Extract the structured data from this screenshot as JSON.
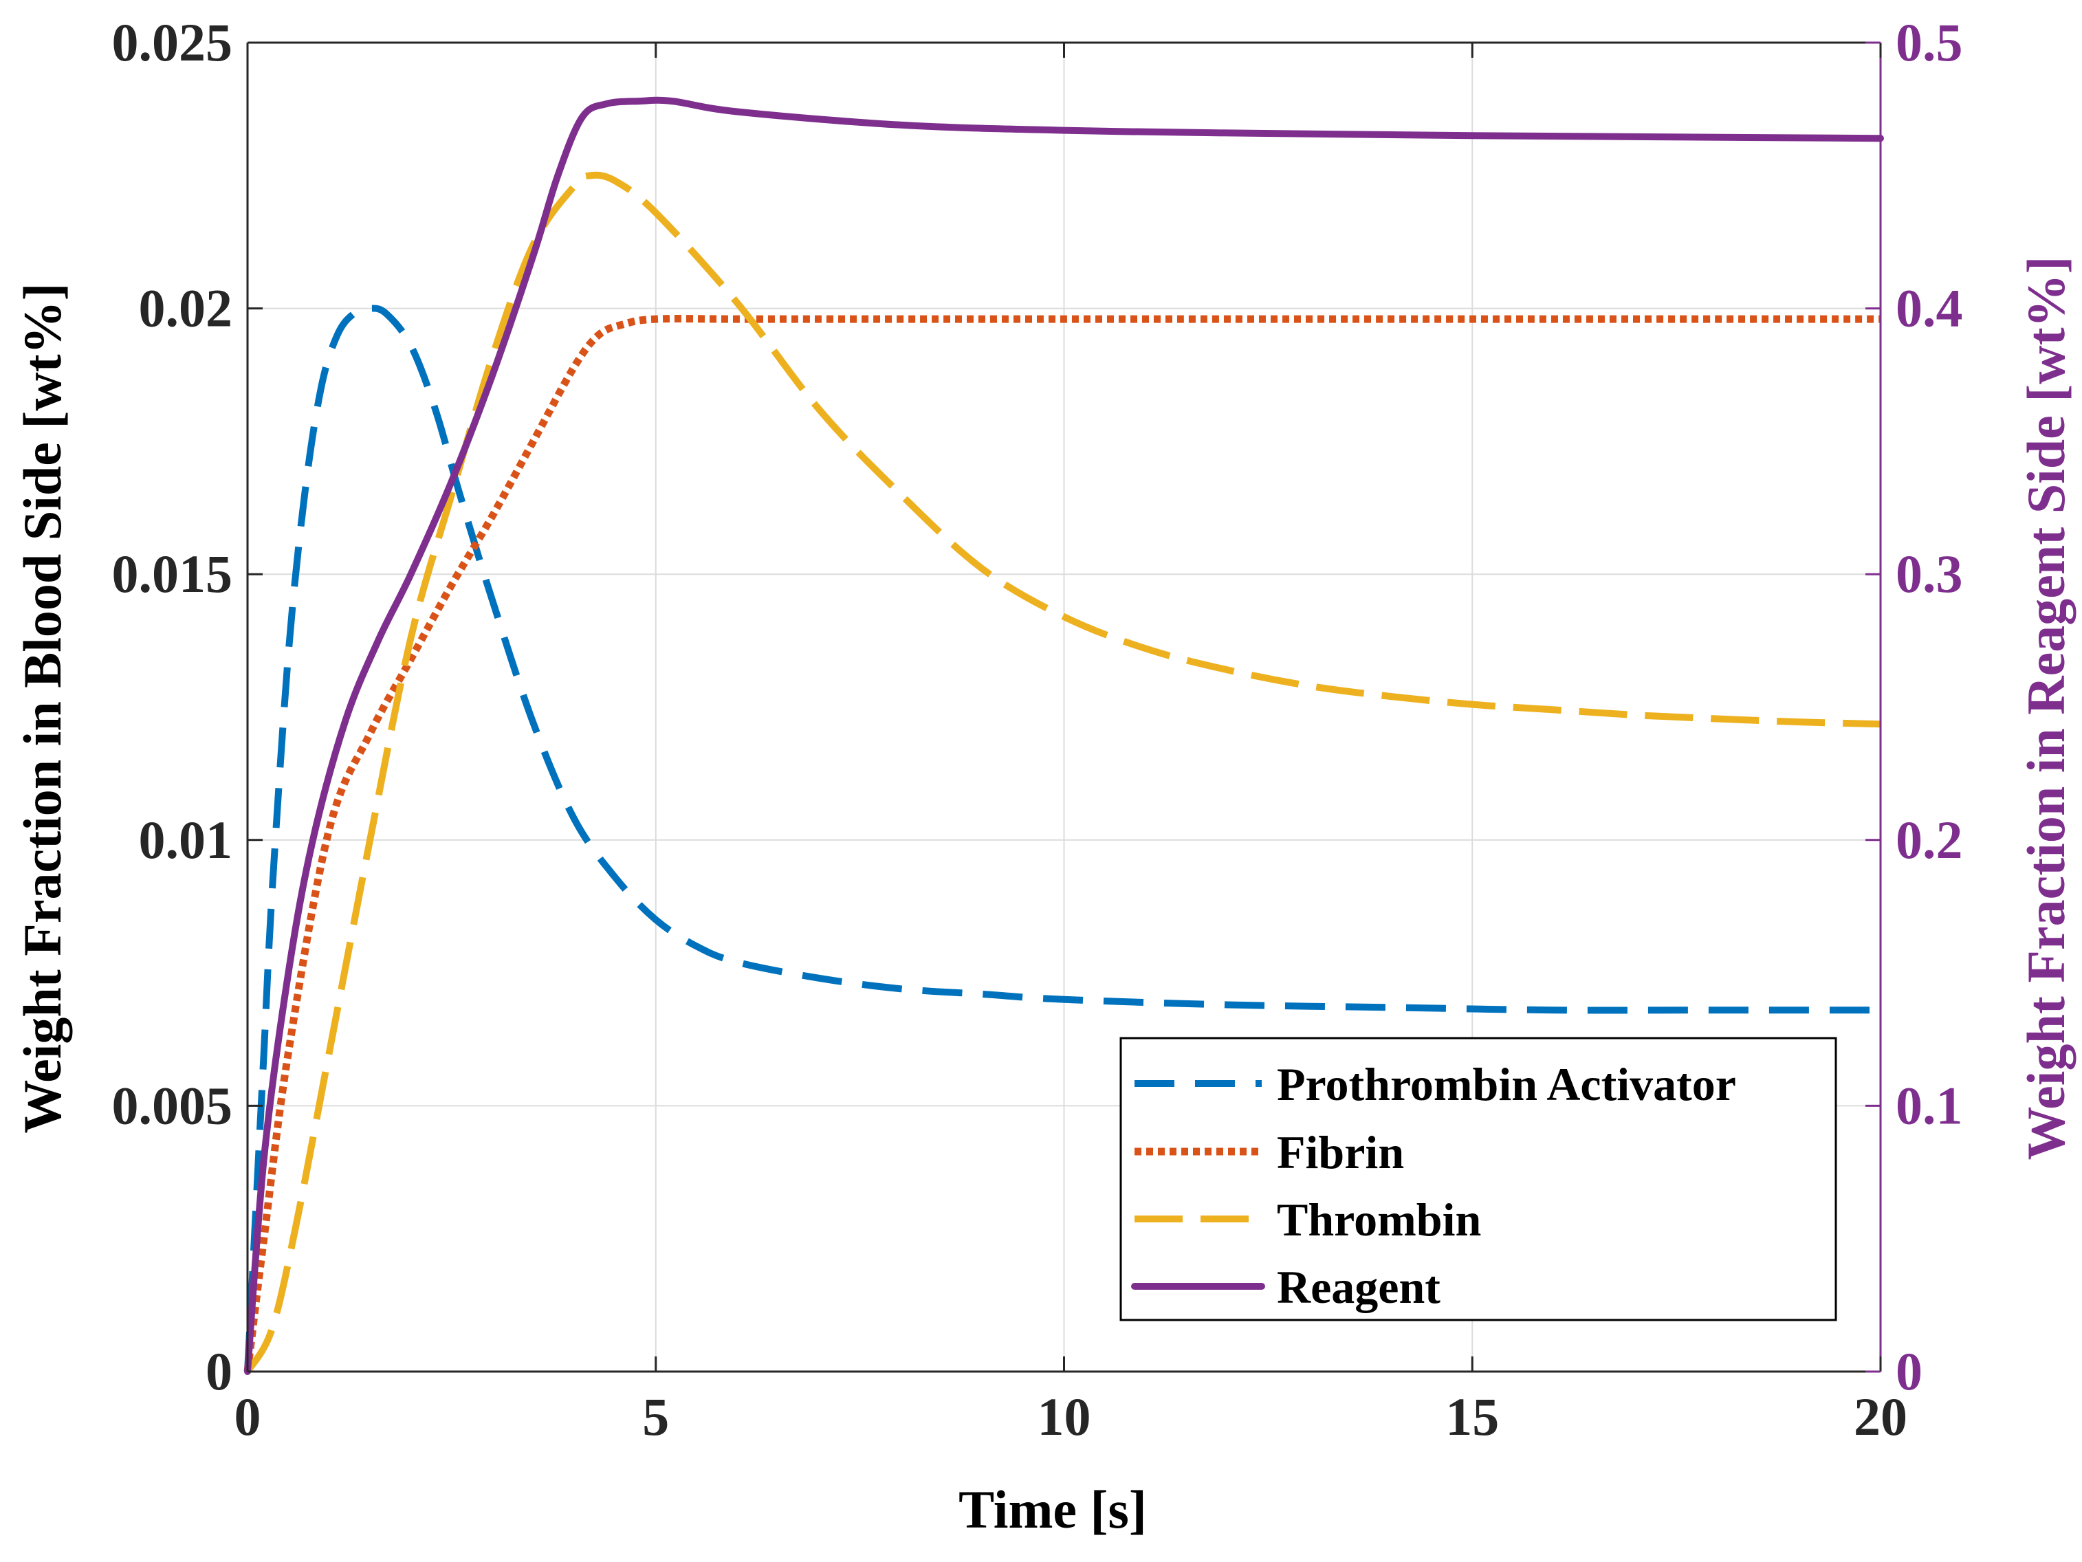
{
  "chart_data": {
    "type": "line",
    "title": "",
    "xlabel": "Time [s]",
    "ylabel_left": "Weight Fraction in Blood Side [wt%]",
    "ylabel_right": "Weight Fraction in Reagent Side [wt%]",
    "xlim": [
      0,
      20
    ],
    "ylim_left": [
      0,
      0.025
    ],
    "ylim_right": [
      0,
      0.5
    ],
    "grid": true,
    "legend_position": "bottom-right",
    "x_ticks": [
      "0",
      "5",
      "10",
      "15",
      "20"
    ],
    "y_left_ticks": [
      "0",
      "0.005",
      "0.01",
      "0.015",
      "0.02",
      "0.025"
    ],
    "y_right_ticks": [
      "0",
      "0.1",
      "0.2",
      "0.3",
      "0.4",
      "0.5"
    ],
    "colors": {
      "prothrombin": "#0072BD",
      "fibrin": "#D95319",
      "thrombin": "#EDB120",
      "reagent": "#7E2F8E",
      "right_axis": "#7E2F8E",
      "grid": "#dcdcdc"
    },
    "series": [
      {
        "name": "Prothrombin Activator",
        "axis": "left",
        "style": "dashed",
        "x": [
          0,
          0.1,
          0.2,
          0.3,
          0.5,
          0.7,
          0.9,
          1.1,
          1.3,
          1.5,
          1.7,
          2.0,
          2.3,
          2.6,
          3.0,
          3.5,
          4.0,
          4.5,
          5.0,
          5.5,
          6.0,
          7.0,
          8.0,
          9.0,
          10.0,
          12.0,
          14.0,
          16.0,
          18.0,
          20.0
        ],
        "y": [
          0,
          0.003,
          0.006,
          0.009,
          0.0135,
          0.0165,
          0.0185,
          0.0195,
          0.0199,
          0.02,
          0.0199,
          0.0193,
          0.0181,
          0.0165,
          0.0145,
          0.0122,
          0.0104,
          0.0093,
          0.0085,
          0.008,
          0.0077,
          0.0074,
          0.0072,
          0.0071,
          0.007,
          0.0069,
          0.00685,
          0.0068,
          0.0068,
          0.0068
        ]
      },
      {
        "name": "Fibrin",
        "axis": "left",
        "style": "dotted",
        "x": [
          0,
          0.2,
          0.5,
          1.0,
          1.5,
          2.0,
          2.5,
          3.0,
          3.5,
          4.0,
          4.3,
          4.6,
          5.0,
          6.0,
          8.0,
          10.0,
          15.0,
          20.0
        ],
        "y": [
          0,
          0.0025,
          0.006,
          0.0102,
          0.012,
          0.0134,
          0.0148,
          0.0161,
          0.0175,
          0.0189,
          0.0195,
          0.0197,
          0.0198,
          0.0198,
          0.0198,
          0.0198,
          0.0198,
          0.0198
        ]
      },
      {
        "name": "Thrombin",
        "axis": "left",
        "style": "longdash",
        "x": [
          0,
          0.3,
          0.6,
          1.0,
          1.5,
          2.0,
          2.5,
          3.0,
          3.5,
          4.0,
          4.2,
          4.5,
          5.0,
          6.0,
          7.0,
          8.0,
          9.0,
          10.0,
          11.0,
          12.0,
          13.0,
          14.0,
          15.0,
          16.0,
          17.0,
          18.0,
          19.0,
          20.0
        ],
        "y": [
          0,
          0.0008,
          0.0028,
          0.006,
          0.01,
          0.0138,
          0.0165,
          0.0191,
          0.0212,
          0.0223,
          0.0225,
          0.0224,
          0.0218,
          0.0201,
          0.0181,
          0.0165,
          0.0151,
          0.0142,
          0.0136,
          0.0132,
          0.0129,
          0.0127,
          0.01255,
          0.01245,
          0.01235,
          0.01228,
          0.01222,
          0.01218
        ]
      },
      {
        "name": "Reagent",
        "axis": "right",
        "style": "solid",
        "x": [
          0,
          0.2,
          0.5,
          0.8,
          1.2,
          1.6,
          2.0,
          2.5,
          3.0,
          3.5,
          3.8,
          4.1,
          4.4,
          4.8,
          5.2,
          6.0,
          8.0,
          10.0,
          12.0,
          15.0,
          20.0
        ],
        "y": [
          0,
          0.08,
          0.15,
          0.2,
          0.245,
          0.275,
          0.3,
          0.335,
          0.375,
          0.42,
          0.45,
          0.472,
          0.477,
          0.478,
          0.478,
          0.474,
          0.469,
          0.467,
          0.466,
          0.465,
          0.464
        ]
      }
    ]
  }
}
